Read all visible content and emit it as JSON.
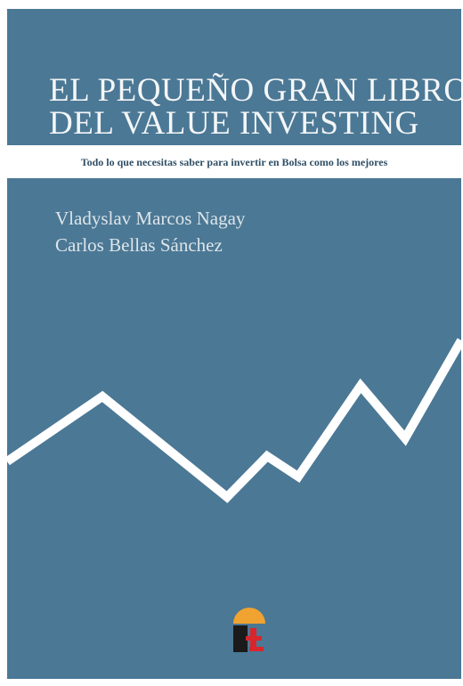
{
  "cover": {
    "title": [
      "EL PEQUEÑO GRAN LIBRO",
      "DEL VALUE INVESTING"
    ],
    "subtitle": "Todo lo que necesitas saber para invertir en Bolsa como los mejores",
    "authors": [
      "Vladyslav Marcos Nagay",
      "Carlos Bellas Sánchez"
    ]
  }
}
